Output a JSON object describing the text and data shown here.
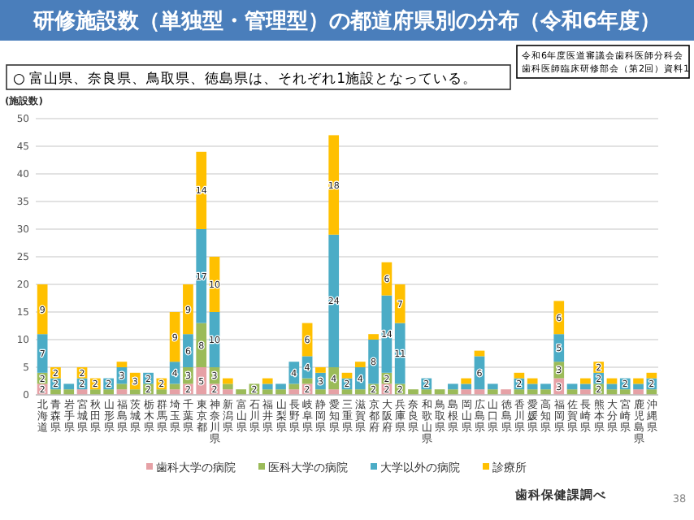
{
  "chart_data": {
    "type": "bar",
    "stacked": true,
    "title": "研修施設数（単独型・管理型）の都道府県別の分布（令和6年度）",
    "subtitle": "○ 富山県、奈良県、鳥取県、徳島県は、それぞれ1施設となっている。",
    "ylabel": "(施設数)",
    "annotations": [
      "令和6年度医道審議会歯科医師分科会",
      "歯科医師臨床研修部会（第2回）資料1",
      "歯科保健課調べ",
      "38"
    ],
    "categories": [
      "北海道",
      "青森県",
      "岩手県",
      "宮城県",
      "秋田県",
      "山形県",
      "福島県",
      "茨城県",
      "栃木県",
      "群馬県",
      "埼玉県",
      "千葉県",
      "東京都",
      "神奈川県",
      "新潟県",
      "富山県",
      "石川県",
      "福井県",
      "山梨県",
      "長野県",
      "岐阜県",
      "静岡県",
      "愛知県",
      "三重県",
      "滋賀県",
      "京都府",
      "大阪府",
      "兵庫県",
      "奈良県",
      "和歌山県",
      "鳥取県",
      "島根県",
      "岡山県",
      "広島県",
      "山口県",
      "徳島県",
      "香川県",
      "愛媛県",
      "高知県",
      "福岡県",
      "佐賀県",
      "長崎県",
      "熊本県",
      "大分県",
      "宮崎県",
      "鹿児島県",
      "沖縄県"
    ],
    "series": [
      {
        "name": "歯科大学の病院",
        "color": "#e6a1a6",
        "values": [
          2,
          null,
          null,
          1,
          null,
          null,
          1,
          null,
          null,
          null,
          1,
          2,
          5,
          2,
          1,
          null,
          null,
          null,
          null,
          1,
          2,
          null,
          1,
          null,
          null,
          null,
          2,
          null,
          null,
          null,
          null,
          null,
          1,
          1,
          null,
          1,
          null,
          null,
          null,
          3,
          null,
          1,
          null,
          null,
          null,
          1,
          null
        ],
        "value_labels": [
          "2",
          null,
          null,
          null,
          null,
          null,
          null,
          null,
          null,
          null,
          null,
          "2",
          "5",
          "2",
          null,
          null,
          null,
          null,
          null,
          null,
          "2",
          null,
          null,
          null,
          null,
          null,
          "2",
          null,
          null,
          null,
          null,
          null,
          null,
          null,
          null,
          null,
          null,
          null,
          null,
          "3",
          null,
          null,
          null,
          null,
          null,
          null,
          null
        ]
      },
      {
        "name": "医科大学の病院",
        "color": "#9bbb59",
        "values": [
          2,
          1,
          1,
          null,
          1,
          1,
          1,
          1,
          2,
          1,
          1,
          3,
          8,
          3,
          1,
          1,
          2,
          1,
          1,
          1,
          1,
          1,
          4,
          1,
          1,
          2,
          2,
          2,
          1,
          1,
          1,
          1,
          null,
          null,
          1,
          null,
          1,
          1,
          1,
          3,
          1,
          null,
          2,
          1,
          1,
          null,
          1
        ],
        "value_labels": [
          "2",
          null,
          null,
          null,
          null,
          null,
          null,
          null,
          "2",
          null,
          null,
          "3",
          "8",
          "3",
          null,
          null,
          "2",
          null,
          null,
          null,
          null,
          null,
          "4",
          null,
          null,
          "2",
          "2",
          "2",
          null,
          null,
          null,
          null,
          null,
          null,
          null,
          null,
          null,
          null,
          null,
          "3",
          null,
          null,
          "2",
          null,
          null,
          null,
          null
        ]
      },
      {
        "name": "大学以外の病院",
        "color": "#4bacc6",
        "values": [
          7,
          2,
          1,
          2,
          null,
          2,
          3,
          null,
          2,
          null,
          4,
          6,
          17,
          10,
          null,
          null,
          null,
          1,
          1,
          4,
          4,
          3,
          24,
          2,
          4,
          8,
          14,
          11,
          null,
          2,
          null,
          1,
          1,
          6,
          1,
          null,
          2,
          1,
          1,
          5,
          1,
          1,
          2,
          1,
          2,
          1,
          2
        ],
        "value_labels": [
          "7",
          "2",
          null,
          "2",
          null,
          "2",
          "3",
          null,
          "2",
          null,
          "4",
          "6",
          "17",
          "10",
          null,
          null,
          null,
          null,
          null,
          "4",
          "4",
          "3",
          "24",
          "2",
          "4",
          "8",
          "14",
          "11",
          null,
          "2",
          null,
          null,
          null,
          "6",
          null,
          null,
          "2",
          null,
          null,
          "5",
          null,
          null,
          "2",
          null,
          "2",
          null,
          "2"
        ]
      },
      {
        "name": "診療所",
        "color": "#ffc000",
        "values": [
          9,
          2,
          null,
          2,
          2,
          null,
          1,
          3,
          null,
          2,
          9,
          9,
          14,
          10,
          1,
          null,
          null,
          1,
          null,
          null,
          6,
          1,
          18,
          1,
          1,
          1,
          6,
          7,
          null,
          null,
          null,
          null,
          1,
          1,
          null,
          null,
          1,
          1,
          null,
          6,
          null,
          1,
          2,
          1,
          null,
          1,
          1
        ],
        "value_labels": [
          "9",
          "2",
          null,
          "2",
          "2",
          null,
          null,
          "3",
          null,
          "2",
          "9",
          "9",
          "14",
          "10",
          null,
          null,
          null,
          null,
          null,
          null,
          "6",
          null,
          "18",
          null,
          null,
          null,
          "6",
          "7",
          null,
          null,
          null,
          null,
          null,
          null,
          null,
          null,
          null,
          null,
          null,
          "6",
          null,
          null,
          "2",
          null,
          null,
          null,
          null
        ]
      }
    ],
    "ylim": [
      0,
      50
    ],
    "yticks": [
      0,
      5,
      10,
      15,
      20,
      25,
      30,
      35,
      40,
      45,
      50
    ],
    "grid": "y",
    "legend": "bottom"
  }
}
